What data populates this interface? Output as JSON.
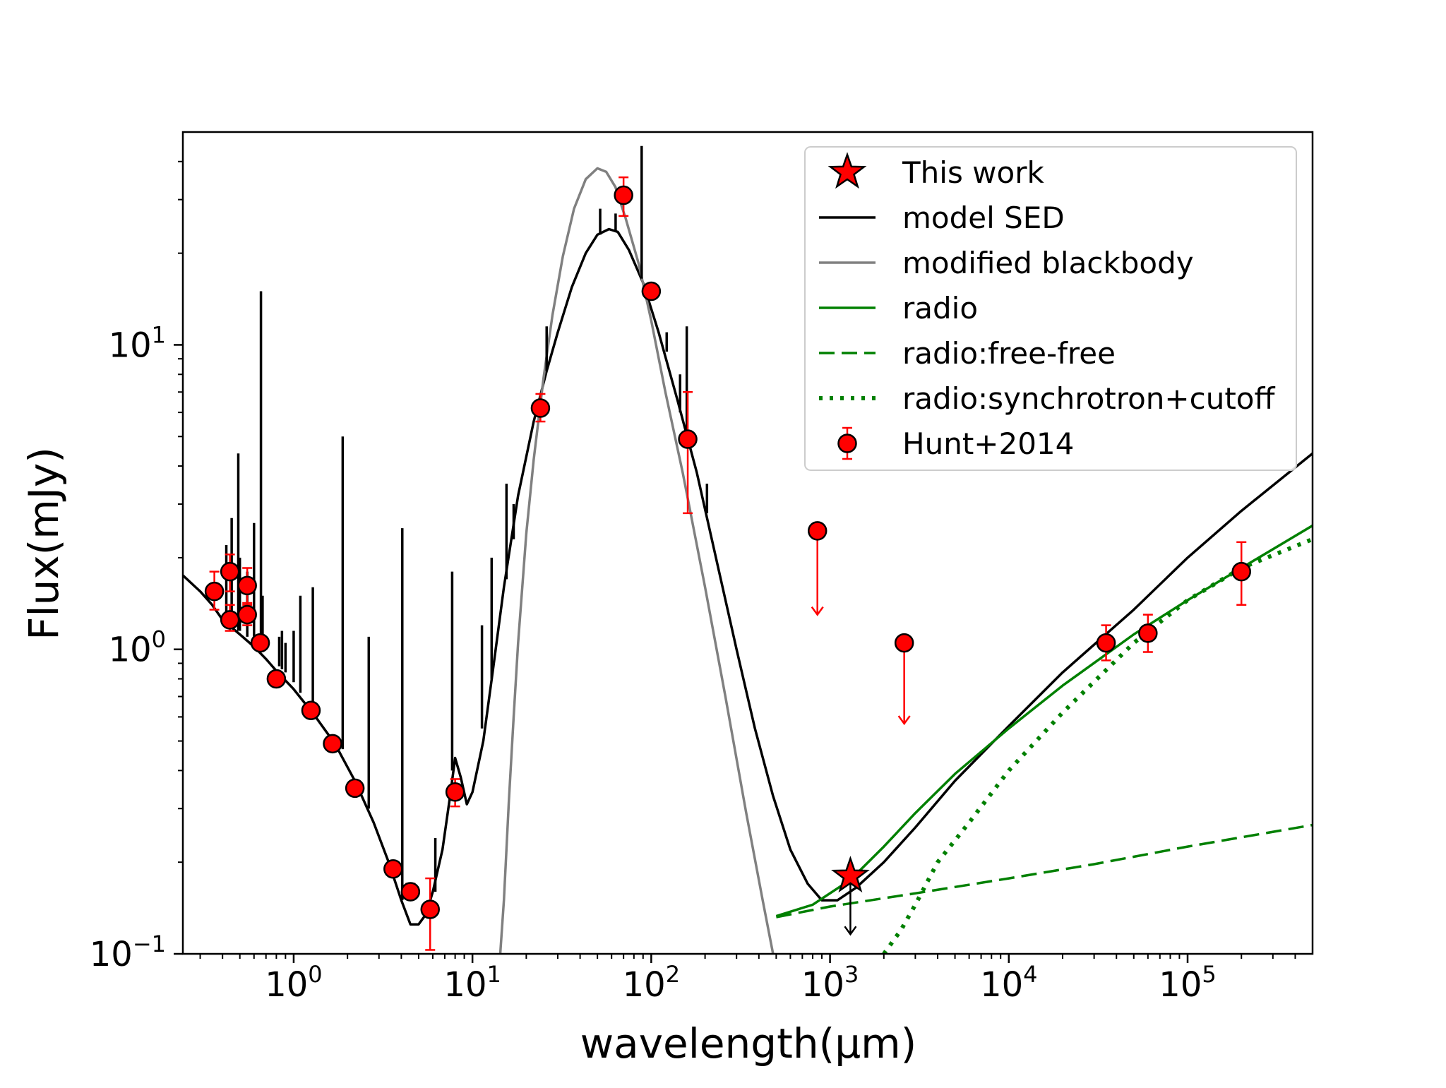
{
  "chart_data": {
    "type": "line",
    "xlabel": "wavelength(μm)",
    "ylabel": "Flux(mJy)",
    "xscale": "log",
    "yscale": "log",
    "xlim": [
      0.24,
      500000
    ],
    "ylim": [
      0.1,
      50
    ],
    "grid": false,
    "x_ticks": [
      {
        "base": "10",
        "exp": "0",
        "value": 1
      },
      {
        "base": "10",
        "exp": "1",
        "value": 10
      },
      {
        "base": "10",
        "exp": "2",
        "value": 100
      },
      {
        "base": "10",
        "exp": "3",
        "value": 1000
      },
      {
        "base": "10",
        "exp": "4",
        "value": 10000
      },
      {
        "base": "10",
        "exp": "5",
        "value": 100000
      }
    ],
    "y_ticks": [
      {
        "base": "10",
        "exp": "−1",
        "value": 0.1
      },
      {
        "base": "10",
        "exp": "0",
        "value": 1
      },
      {
        "base": "10",
        "exp": "1",
        "value": 10
      }
    ],
    "legend": {
      "placement": "top-right",
      "entries": [
        {
          "label": "This work",
          "marker": "star",
          "color": "#ff0000"
        },
        {
          "label": "model SED",
          "style": "solid",
          "color": "#000000"
        },
        {
          "label": "modified blackbody",
          "style": "solid",
          "color": "#808080"
        },
        {
          "label": "radio",
          "style": "solid",
          "color": "#008000"
        },
        {
          "label": "radio:free-free",
          "style": "dashed",
          "color": "#008000"
        },
        {
          "label": "radio:synchrotron+cutoff",
          "style": "dotted",
          "color": "#008000"
        },
        {
          "label": "Hunt+2014",
          "marker": "circle-errorbar",
          "color": "#ff0000"
        }
      ]
    },
    "series": [
      {
        "name": "model SED",
        "color": "#000000",
        "style": "solid",
        "points": [
          [
            0.24,
            1.75
          ],
          [
            0.3,
            1.55
          ],
          [
            0.35,
            1.4
          ],
          [
            0.4,
            1.25
          ],
          [
            0.5,
            1.12
          ],
          [
            0.6,
            1.02
          ],
          [
            0.7,
            0.93
          ],
          [
            0.8,
            0.85
          ],
          [
            1.0,
            0.74
          ],
          [
            1.3,
            0.61
          ],
          [
            1.7,
            0.49
          ],
          [
            2.2,
            0.37
          ],
          [
            2.8,
            0.27
          ],
          [
            3.4,
            0.2
          ],
          [
            4.0,
            0.15
          ],
          [
            4.5,
            0.125
          ],
          [
            5.0,
            0.125
          ],
          [
            5.5,
            0.135
          ],
          [
            6.0,
            0.16
          ],
          [
            6.8,
            0.22
          ],
          [
            7.5,
            0.33
          ],
          [
            8.0,
            0.44
          ],
          [
            8.6,
            0.38
          ],
          [
            9.3,
            0.31
          ],
          [
            10.0,
            0.34
          ],
          [
            11.5,
            0.5
          ],
          [
            13.0,
            0.85
          ],
          [
            15.0,
            1.6
          ],
          [
            18.0,
            3.2
          ],
          [
            22.0,
            5.6
          ],
          [
            26.0,
            8.2
          ],
          [
            30.0,
            11.0
          ],
          [
            36.0,
            15.5
          ],
          [
            43.0,
            20.0
          ],
          [
            50.0,
            23.0
          ],
          [
            58.0,
            24.0
          ],
          [
            65.0,
            23.5
          ],
          [
            75.0,
            20.5
          ],
          [
            90.0,
            16.0
          ],
          [
            110.0,
            11.0
          ],
          [
            140.0,
            6.6
          ],
          [
            180.0,
            3.8
          ],
          [
            230.0,
            2.0
          ],
          [
            300.0,
            1.0
          ],
          [
            380.0,
            0.55
          ],
          [
            480.0,
            0.33
          ],
          [
            600.0,
            0.22
          ],
          [
            750.0,
            0.17
          ],
          [
            900.0,
            0.15
          ],
          [
            1100.0,
            0.15
          ],
          [
            1400.0,
            0.165
          ],
          [
            2000.0,
            0.2
          ],
          [
            3000.0,
            0.26
          ],
          [
            5000.0,
            0.37
          ],
          [
            10000.0,
            0.56
          ],
          [
            20000.0,
            0.84
          ],
          [
            50000.0,
            1.35
          ],
          [
            100000.0,
            2.0
          ],
          [
            200000.0,
            2.85
          ],
          [
            500000.0,
            4.4
          ]
        ]
      },
      {
        "name": "modified blackbody",
        "color": "#808080",
        "style": "solid",
        "points": [
          [
            14.3,
            0.1
          ],
          [
            15.0,
            0.15
          ],
          [
            16.0,
            0.32
          ],
          [
            17.0,
            0.6
          ],
          [
            18.0,
            1.05
          ],
          [
            20.0,
            2.4
          ],
          [
            22.0,
            4.2
          ],
          [
            25.0,
            7.8
          ],
          [
            28.0,
            12.5
          ],
          [
            32.0,
            19.5
          ],
          [
            37.0,
            28.0
          ],
          [
            43.0,
            35.0
          ],
          [
            50.0,
            38.0
          ],
          [
            56.0,
            37.0
          ],
          [
            63.0,
            33.0
          ],
          [
            72.0,
            26.0
          ],
          [
            85.0,
            18.5
          ],
          [
            100.0,
            12.0
          ],
          [
            120.0,
            7.0
          ],
          [
            150.0,
            3.8
          ],
          [
            200.0,
            1.6
          ],
          [
            260.0,
            0.7
          ],
          [
            340.0,
            0.29
          ],
          [
            420.0,
            0.15
          ],
          [
            480.0,
            0.1
          ]
        ]
      },
      {
        "name": "radio",
        "color": "#008000",
        "style": "solid",
        "points": [
          [
            500.0,
            0.133
          ],
          [
            800.0,
            0.145
          ],
          [
            1300.0,
            0.175
          ],
          [
            2000.0,
            0.225
          ],
          [
            3000.0,
            0.29
          ],
          [
            5000.0,
            0.39
          ],
          [
            10000.0,
            0.55
          ],
          [
            20000.0,
            0.76
          ],
          [
            50000.0,
            1.12
          ],
          [
            100000.0,
            1.45
          ],
          [
            200000.0,
            1.85
          ],
          [
            500000.0,
            2.55
          ]
        ]
      },
      {
        "name": "radio:free-free",
        "color": "#008000",
        "style": "dashed",
        "points": [
          [
            500.0,
            0.132
          ],
          [
            1000.0,
            0.143
          ],
          [
            3000.0,
            0.158
          ],
          [
            10000.0,
            0.177
          ],
          [
            30000.0,
            0.197
          ],
          [
            100000.0,
            0.225
          ],
          [
            500000.0,
            0.265
          ]
        ]
      },
      {
        "name": "radio:synchrotron+cutoff",
        "color": "#008000",
        "style": "dotted",
        "points": [
          [
            2000.0,
            0.1
          ],
          [
            2500.0,
            0.12
          ],
          [
            3000.0,
            0.145
          ],
          [
            4000.0,
            0.2
          ],
          [
            6000.0,
            0.27
          ],
          [
            10000.0,
            0.4
          ],
          [
            20000.0,
            0.62
          ],
          [
            50000.0,
            1.05
          ],
          [
            100000.0,
            1.45
          ],
          [
            200000.0,
            1.85
          ],
          [
            500000.0,
            2.3
          ]
        ]
      }
    ],
    "spike_lines": [
      {
        "x": 0.42,
        "ylo": 1.25,
        "yhi": 2.2
      },
      {
        "x": 0.45,
        "ylo": 1.2,
        "yhi": 2.7
      },
      {
        "x": 0.49,
        "ylo": 1.15,
        "yhi": 4.4
      },
      {
        "x": 0.5,
        "ylo": 1.15,
        "yhi": 2.0
      },
      {
        "x": 0.55,
        "ylo": 1.1,
        "yhi": 1.8
      },
      {
        "x": 0.6,
        "ylo": 1.05,
        "yhi": 2.6
      },
      {
        "x": 0.656,
        "ylo": 1.0,
        "yhi": 15.0
      },
      {
        "x": 0.67,
        "ylo": 0.98,
        "yhi": 1.5
      },
      {
        "x": 0.83,
        "ylo": 0.88,
        "yhi": 1.1
      },
      {
        "x": 0.86,
        "ylo": 0.86,
        "yhi": 1.15
      },
      {
        "x": 0.9,
        "ylo": 0.84,
        "yhi": 1.05
      },
      {
        "x": 1.0,
        "ylo": 0.78,
        "yhi": 1.15
      },
      {
        "x": 1.09,
        "ylo": 0.72,
        "yhi": 1.5
      },
      {
        "x": 1.28,
        "ylo": 0.63,
        "yhi": 1.6
      },
      {
        "x": 1.88,
        "ylo": 0.47,
        "yhi": 5.0
      },
      {
        "x": 2.63,
        "ylo": 0.3,
        "yhi": 1.1
      },
      {
        "x": 4.05,
        "ylo": 0.15,
        "yhi": 2.5
      },
      {
        "x": 6.2,
        "ylo": 0.16,
        "yhi": 0.24
      },
      {
        "x": 7.7,
        "ylo": 0.4,
        "yhi": 1.8
      },
      {
        "x": 11.3,
        "ylo": 0.55,
        "yhi": 1.2
      },
      {
        "x": 12.8,
        "ylo": 0.8,
        "yhi": 2.0
      },
      {
        "x": 15.5,
        "ylo": 1.7,
        "yhi": 3.5
      },
      {
        "x": 17.0,
        "ylo": 2.3,
        "yhi": 3.0
      },
      {
        "x": 26.0,
        "ylo": 8.2,
        "yhi": 11.5
      },
      {
        "x": 51.8,
        "ylo": 23.0,
        "yhi": 28.0
      },
      {
        "x": 63.2,
        "ylo": 23.5,
        "yhi": 27.0
      },
      {
        "x": 88.4,
        "ylo": 16.5,
        "yhi": 45.0
      },
      {
        "x": 122.0,
        "ylo": 9.5,
        "yhi": 11.0
      },
      {
        "x": 145.0,
        "ylo": 6.0,
        "yhi": 8.0
      },
      {
        "x": 158.0,
        "ylo": 5.0,
        "yhi": 11.5
      },
      {
        "x": 205.0,
        "ylo": 2.8,
        "yhi": 3.5
      }
    ],
    "this_work": [
      {
        "x": 1300,
        "y": 0.18,
        "upper_limit_to": 0.116
      }
    ],
    "hunt2014": [
      {
        "x": 0.36,
        "y": 1.55,
        "ylo": 1.35,
        "yhi": 1.8
      },
      {
        "x": 0.44,
        "y": 1.8,
        "ylo": 1.55,
        "yhi": 2.05
      },
      {
        "x": 0.44,
        "y": 1.25,
        "ylo": 1.15,
        "yhi": 1.4
      },
      {
        "x": 0.55,
        "y": 1.62,
        "ylo": 1.42,
        "yhi": 1.85
      },
      {
        "x": 0.55,
        "y": 1.3,
        "ylo": 1.2,
        "yhi": 1.4
      },
      {
        "x": 0.65,
        "y": 1.05,
        "ylo": 1.0,
        "yhi": 1.1
      },
      {
        "x": 0.8,
        "y": 0.8,
        "ylo": 0.77,
        "yhi": 0.83
      },
      {
        "x": 1.25,
        "y": 0.63,
        "ylo": 0.6,
        "yhi": 0.66
      },
      {
        "x": 1.65,
        "y": 0.49,
        "ylo": 0.47,
        "yhi": 0.51
      },
      {
        "x": 2.2,
        "y": 0.35,
        "ylo": 0.335,
        "yhi": 0.365
      },
      {
        "x": 3.6,
        "y": 0.19,
        "ylo": 0.182,
        "yhi": 0.198
      },
      {
        "x": 4.5,
        "y": 0.16,
        "ylo": 0.152,
        "yhi": 0.17
      },
      {
        "x": 5.8,
        "y": 0.14,
        "ylo": 0.103,
        "yhi": 0.177
      },
      {
        "x": 8.0,
        "y": 0.34,
        "ylo": 0.305,
        "yhi": 0.375
      },
      {
        "x": 24.0,
        "y": 6.2,
        "ylo": 5.6,
        "yhi": 6.9
      },
      {
        "x": 70.0,
        "y": 31.0,
        "ylo": 26.5,
        "yhi": 35.5
      },
      {
        "x": 100.0,
        "y": 15.0,
        "ylo": 14.4,
        "yhi": 15.6
      },
      {
        "x": 160.0,
        "y": 4.9,
        "ylo": 2.8,
        "yhi": 7.0
      },
      {
        "x": 35000.0,
        "y": 1.05,
        "ylo": 0.92,
        "yhi": 1.2
      },
      {
        "x": 60000.0,
        "y": 1.13,
        "ylo": 0.98,
        "yhi": 1.3
      },
      {
        "x": 200000.0,
        "y": 1.8,
        "ylo": 1.4,
        "yhi": 2.25
      }
    ],
    "hunt2014_upper_limits": [
      {
        "x": 850.0,
        "y": 2.45,
        "to": 1.3
      },
      {
        "x": 2600.0,
        "y": 1.05,
        "to": 0.57
      }
    ]
  }
}
